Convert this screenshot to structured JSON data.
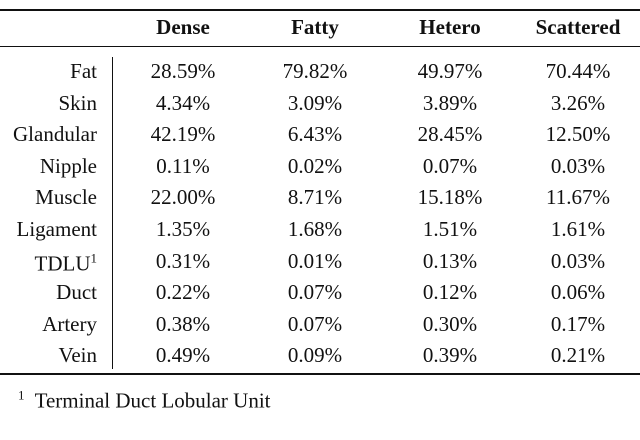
{
  "table": {
    "columns": [
      "Dense",
      "Fatty",
      "Hetero",
      "Scattered"
    ],
    "rows": [
      {
        "label": "Fat",
        "cells": [
          "28.59%",
          "79.82%",
          "49.97%",
          "70.44%"
        ]
      },
      {
        "label": "Skin",
        "cells": [
          "4.34%",
          "3.09%",
          "3.89%",
          "3.26%"
        ]
      },
      {
        "label": "Glandular",
        "cells": [
          "42.19%",
          "6.43%",
          "28.45%",
          "12.50%"
        ]
      },
      {
        "label": "Nipple",
        "cells": [
          "0.11%",
          "0.02%",
          "0.07%",
          "0.03%"
        ]
      },
      {
        "label": "Muscle",
        "cells": [
          "22.00%",
          "8.71%",
          "15.18%",
          "11.67%"
        ]
      },
      {
        "label": "Ligament",
        "cells": [
          "1.35%",
          "1.68%",
          "1.51%",
          "1.61%"
        ]
      },
      {
        "label": "TDLU",
        "note": "1",
        "cells": [
          "0.31%",
          "0.01%",
          "0.13%",
          "0.03%"
        ]
      },
      {
        "label": "Duct",
        "cells": [
          "0.22%",
          "0.07%",
          "0.12%",
          "0.06%"
        ]
      },
      {
        "label": "Artery",
        "cells": [
          "0.38%",
          "0.07%",
          "0.30%",
          "0.17%"
        ]
      },
      {
        "label": "Vein",
        "cells": [
          "0.49%",
          "0.09%",
          "0.39%",
          "0.21%"
        ]
      }
    ]
  },
  "footnote": {
    "marker": "1",
    "text": "Terminal Duct Lobular Unit"
  }
}
